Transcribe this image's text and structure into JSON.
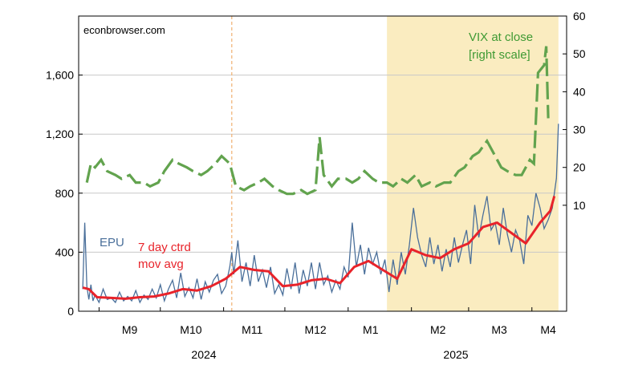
{
  "chart_data": {
    "type": "line",
    "watermark": "econbrowser.com",
    "left_axis": {
      "ylim": [
        0,
        2000
      ],
      "ticks": [
        0,
        400,
        800,
        1200,
        1600
      ],
      "tick_labels": [
        "0",
        "400",
        "800",
        "1,200",
        "1,600"
      ]
    },
    "right_axis": {
      "ylim": [
        -18,
        60
      ],
      "ticks": [
        10,
        20,
        30,
        40,
        50,
        60
      ],
      "tick_labels": [
        "10",
        "20",
        "30",
        "40",
        "50",
        "60"
      ]
    },
    "x_months": [
      "M9",
      "M10",
      "M11",
      "M12",
      "M1",
      "M2",
      "M3",
      "M4"
    ],
    "x_years": [
      "2024",
      "2025"
    ],
    "shaded_region": {
      "start": "2025-01-20",
      "end": "2025-04-14",
      "color": "#faecc0"
    },
    "vertical_line": {
      "date": "2024-11-05",
      "color": "#f0b070"
    },
    "annotations": {
      "epu": "EPU",
      "ma_line1": "7 day ctrd",
      "ma_line2": "mov avg",
      "vix_line1": "VIX at close",
      "vix_line2": "[right scale]"
    },
    "colors": {
      "epu": "#4a6f9a",
      "ma": "#e8232a",
      "vix": "#62a34e"
    },
    "series": [
      {
        "name": "EPU",
        "axis": "left",
        "points": [
          [
            "2024-08-24",
            150
          ],
          [
            "2024-08-25",
            600
          ],
          [
            "2024-08-26",
            170
          ],
          [
            "2024-08-27",
            80
          ],
          [
            "2024-08-28",
            180
          ],
          [
            "2024-08-29",
            70
          ],
          [
            "2024-08-30",
            110
          ],
          [
            "2024-09-01",
            60
          ],
          [
            "2024-09-03",
            150
          ],
          [
            "2024-09-05",
            80
          ],
          [
            "2024-09-07",
            90
          ],
          [
            "2024-09-09",
            60
          ],
          [
            "2024-09-11",
            130
          ],
          [
            "2024-09-13",
            70
          ],
          [
            "2024-09-15",
            100
          ],
          [
            "2024-09-17",
            70
          ],
          [
            "2024-09-19",
            140
          ],
          [
            "2024-09-21",
            60
          ],
          [
            "2024-09-23",
            110
          ],
          [
            "2024-09-25",
            80
          ],
          [
            "2024-09-27",
            150
          ],
          [
            "2024-09-29",
            90
          ],
          [
            "2024-10-01",
            180
          ],
          [
            "2024-10-03",
            70
          ],
          [
            "2024-10-05",
            150
          ],
          [
            "2024-10-07",
            210
          ],
          [
            "2024-10-09",
            90
          ],
          [
            "2024-10-11",
            260
          ],
          [
            "2024-10-13",
            100
          ],
          [
            "2024-10-15",
            160
          ],
          [
            "2024-10-17",
            90
          ],
          [
            "2024-10-19",
            220
          ],
          [
            "2024-10-21",
            80
          ],
          [
            "2024-10-23",
            200
          ],
          [
            "2024-10-25",
            130
          ],
          [
            "2024-10-27",
            210
          ],
          [
            "2024-10-29",
            250
          ],
          [
            "2024-10-31",
            120
          ],
          [
            "2024-11-02",
            170
          ],
          [
            "2024-11-04",
            300
          ],
          [
            "2024-11-05",
            400
          ],
          [
            "2024-11-06",
            250
          ],
          [
            "2024-11-08",
            480
          ],
          [
            "2024-11-10",
            200
          ],
          [
            "2024-11-12",
            330
          ],
          [
            "2024-11-14",
            170
          ],
          [
            "2024-11-16",
            380
          ],
          [
            "2024-11-18",
            200
          ],
          [
            "2024-11-20",
            280
          ],
          [
            "2024-11-22",
            160
          ],
          [
            "2024-11-24",
            300
          ],
          [
            "2024-11-26",
            120
          ],
          [
            "2024-11-28",
            180
          ],
          [
            "2024-11-30",
            110
          ],
          [
            "2024-12-02",
            290
          ],
          [
            "2024-12-04",
            150
          ],
          [
            "2024-12-06",
            330
          ],
          [
            "2024-12-08",
            120
          ],
          [
            "2024-12-10",
            280
          ],
          [
            "2024-12-12",
            170
          ],
          [
            "2024-12-14",
            330
          ],
          [
            "2024-12-16",
            150
          ],
          [
            "2024-12-18",
            330
          ],
          [
            "2024-12-20",
            180
          ],
          [
            "2024-12-22",
            240
          ],
          [
            "2024-12-24",
            130
          ],
          [
            "2024-12-26",
            210
          ],
          [
            "2024-12-28",
            150
          ],
          [
            "2024-12-30",
            300
          ],
          [
            "2025-01-01",
            230
          ],
          [
            "2025-01-03",
            600
          ],
          [
            "2025-01-05",
            300
          ],
          [
            "2025-01-07",
            450
          ],
          [
            "2025-01-09",
            250
          ],
          [
            "2025-01-11",
            430
          ],
          [
            "2025-01-13",
            320
          ],
          [
            "2025-01-15",
            400
          ],
          [
            "2025-01-17",
            250
          ],
          [
            "2025-01-19",
            350
          ],
          [
            "2025-01-21",
            130
          ],
          [
            "2025-01-23",
            350
          ],
          [
            "2025-01-25",
            180
          ],
          [
            "2025-01-27",
            400
          ],
          [
            "2025-01-29",
            250
          ],
          [
            "2025-01-31",
            450
          ],
          [
            "2025-02-02",
            700
          ],
          [
            "2025-02-04",
            500
          ],
          [
            "2025-02-06",
            380
          ],
          [
            "2025-02-08",
            300
          ],
          [
            "2025-02-10",
            500
          ],
          [
            "2025-02-12",
            320
          ],
          [
            "2025-02-14",
            450
          ],
          [
            "2025-02-16",
            270
          ],
          [
            "2025-02-18",
            420
          ],
          [
            "2025-02-20",
            300
          ],
          [
            "2025-02-22",
            500
          ],
          [
            "2025-02-24",
            330
          ],
          [
            "2025-02-26",
            450
          ],
          [
            "2025-02-28",
            550
          ],
          [
            "2025-03-02",
            320
          ],
          [
            "2025-03-04",
            720
          ],
          [
            "2025-03-06",
            500
          ],
          [
            "2025-03-08",
            650
          ],
          [
            "2025-03-10",
            780
          ],
          [
            "2025-03-12",
            550
          ],
          [
            "2025-03-14",
            600
          ],
          [
            "2025-03-16",
            450
          ],
          [
            "2025-03-18",
            700
          ],
          [
            "2025-03-20",
            520
          ],
          [
            "2025-03-22",
            400
          ],
          [
            "2025-03-24",
            550
          ],
          [
            "2025-03-26",
            480
          ],
          [
            "2025-03-28",
            320
          ],
          [
            "2025-03-30",
            650
          ],
          [
            "2025-04-01",
            580
          ],
          [
            "2025-04-03",
            800
          ],
          [
            "2025-04-05",
            700
          ],
          [
            "2025-04-07",
            560
          ],
          [
            "2025-04-09",
            620
          ],
          [
            "2025-04-11",
            700
          ],
          [
            "2025-04-13",
            900
          ],
          [
            "2025-04-14",
            1270
          ]
        ]
      },
      {
        "name": "7 day ctrd mov avg",
        "axis": "left",
        "points": [
          [
            "2024-08-24",
            160
          ],
          [
            "2024-08-27",
            150
          ],
          [
            "2024-08-31",
            95
          ],
          [
            "2024-09-07",
            90
          ],
          [
            "2024-09-14",
            85
          ],
          [
            "2024-09-21",
            95
          ],
          [
            "2024-09-28",
            100
          ],
          [
            "2024-10-05",
            120
          ],
          [
            "2024-10-12",
            150
          ],
          [
            "2024-10-19",
            140
          ],
          [
            "2024-10-26",
            170
          ],
          [
            "2024-11-02",
            220
          ],
          [
            "2024-11-09",
            300
          ],
          [
            "2024-11-16",
            280
          ],
          [
            "2024-11-23",
            270
          ],
          [
            "2024-11-30",
            170
          ],
          [
            "2024-12-07",
            180
          ],
          [
            "2024-12-14",
            210
          ],
          [
            "2024-12-21",
            220
          ],
          [
            "2024-12-28",
            190
          ],
          [
            "2025-01-04",
            300
          ],
          [
            "2025-01-11",
            340
          ],
          [
            "2025-01-18",
            280
          ],
          [
            "2025-01-25",
            220
          ],
          [
            "2025-02-01",
            420
          ],
          [
            "2025-02-08",
            380
          ],
          [
            "2025-02-15",
            360
          ],
          [
            "2025-02-22",
            420
          ],
          [
            "2025-03-01",
            460
          ],
          [
            "2025-03-08",
            570
          ],
          [
            "2025-03-15",
            600
          ],
          [
            "2025-03-22",
            530
          ],
          [
            "2025-03-29",
            460
          ],
          [
            "2025-04-05",
            600
          ],
          [
            "2025-04-10",
            680
          ],
          [
            "2025-04-12",
            780
          ]
        ]
      },
      {
        "name": "VIX at close",
        "axis": "right",
        "points": [
          [
            "2024-08-26",
            16
          ],
          [
            "2024-08-28",
            21
          ],
          [
            "2024-08-30",
            20
          ],
          [
            "2024-09-02",
            22
          ],
          [
            "2024-09-05",
            19
          ],
          [
            "2024-09-09",
            18
          ],
          [
            "2024-09-12",
            17
          ],
          [
            "2024-09-16",
            18
          ],
          [
            "2024-09-19",
            16
          ],
          [
            "2024-09-23",
            16
          ],
          [
            "2024-09-26",
            15
          ],
          [
            "2024-09-30",
            16
          ],
          [
            "2024-10-03",
            19
          ],
          [
            "2024-10-07",
            22
          ],
          [
            "2024-10-10",
            21
          ],
          [
            "2024-10-14",
            20
          ],
          [
            "2024-10-17",
            19
          ],
          [
            "2024-10-21",
            18
          ],
          [
            "2024-10-24",
            19
          ],
          [
            "2024-10-28",
            21
          ],
          [
            "2024-10-31",
            23
          ],
          [
            "2024-11-04",
            21
          ],
          [
            "2024-11-07",
            15
          ],
          [
            "2024-11-11",
            14
          ],
          [
            "2024-11-14",
            15
          ],
          [
            "2024-11-18",
            16
          ],
          [
            "2024-11-21",
            17
          ],
          [
            "2024-11-25",
            15
          ],
          [
            "2024-11-28",
            14
          ],
          [
            "2024-12-02",
            13
          ],
          [
            "2024-12-05",
            13
          ],
          [
            "2024-12-09",
            14
          ],
          [
            "2024-12-12",
            13
          ],
          [
            "2024-12-16",
            14
          ],
          [
            "2024-12-18",
            28
          ],
          [
            "2024-12-20",
            18
          ],
          [
            "2024-12-24",
            15
          ],
          [
            "2024-12-27",
            17
          ],
          [
            "2024-12-31",
            17
          ],
          [
            "2025-01-03",
            16
          ],
          [
            "2025-01-06",
            17
          ],
          [
            "2025-01-09",
            19
          ],
          [
            "2025-01-13",
            17
          ],
          [
            "2025-01-16",
            16
          ],
          [
            "2025-01-20",
            16
          ],
          [
            "2025-01-23",
            15
          ],
          [
            "2025-01-27",
            17
          ],
          [
            "2025-01-30",
            16
          ],
          [
            "2025-02-03",
            18
          ],
          [
            "2025-02-06",
            15
          ],
          [
            "2025-02-10",
            16
          ],
          [
            "2025-02-13",
            15
          ],
          [
            "2025-02-17",
            16
          ],
          [
            "2025-02-20",
            16
          ],
          [
            "2025-02-24",
            19
          ],
          [
            "2025-02-27",
            20
          ],
          [
            "2025-03-03",
            23
          ],
          [
            "2025-03-06",
            24
          ],
          [
            "2025-03-10",
            27
          ],
          [
            "2025-03-13",
            24
          ],
          [
            "2025-03-17",
            20
          ],
          [
            "2025-03-20",
            19
          ],
          [
            "2025-03-24",
            18
          ],
          [
            "2025-03-27",
            18
          ],
          [
            "2025-03-31",
            22
          ],
          [
            "2025-04-02",
            21
          ],
          [
            "2025-04-04",
            45
          ],
          [
            "2025-04-07",
            47
          ],
          [
            "2025-04-08",
            52
          ],
          [
            "2025-04-09",
            33
          ]
        ]
      }
    ]
  }
}
